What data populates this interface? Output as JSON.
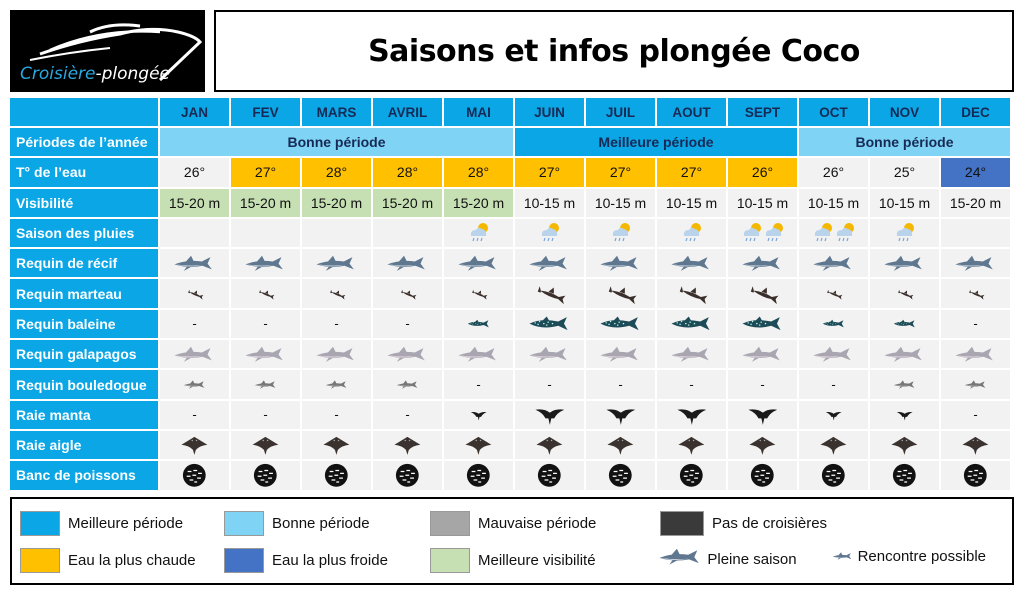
{
  "logo": {
    "text_part1": "Croisière",
    "text_part2": "-plongée"
  },
  "title": "Saisons et infos plongée Coco",
  "colors": {
    "best_period": "#0aa6e6",
    "good_period": "#7fd4f5",
    "bad_period": "#a6a6a6",
    "no_cruise": "#3a3a3a",
    "warmest_water": "#ffc000",
    "coldest_water": "#4472c4",
    "best_visibility": "#c6e0b4"
  },
  "months": [
    "JAN",
    "FEV",
    "MARS",
    "AVRIL",
    "MAI",
    "JUIN",
    "JUIL",
    "AOUT",
    "SEPT",
    "OCT",
    "NOV",
    "DEC"
  ],
  "periods": {
    "label": "Périodes de l’année",
    "segments": [
      {
        "text": "Bonne période",
        "span": 5,
        "type": "good"
      },
      {
        "text": "Meilleure période",
        "span": 4,
        "type": "best"
      },
      {
        "text": "Bonne période",
        "span": 3,
        "type": "good"
      }
    ]
  },
  "temperature": {
    "label": "T° de l’eau",
    "values": [
      "26°",
      "27°",
      "28°",
      "28°",
      "28°",
      "27°",
      "27°",
      "27°",
      "26°",
      "26°",
      "25°",
      "24°"
    ],
    "highlight": [
      "none",
      "warm",
      "warm",
      "warm",
      "warm",
      "warm",
      "warm",
      "warm",
      "warm",
      "none",
      "none",
      "cold"
    ]
  },
  "visibility": {
    "label": "Visibilité",
    "values": [
      "15-20 m",
      "15-20 m",
      "15-20 m",
      "15-20 m",
      "15-20 m",
      "10-15 m",
      "10-15 m",
      "10-15 m",
      "10-15 m",
      "10-15 m",
      "10-15 m",
      "15-20 m"
    ],
    "highlight": [
      true,
      true,
      true,
      true,
      true,
      false,
      false,
      false,
      false,
      false,
      false,
      false
    ]
  },
  "rain": {
    "label": "Saison des pluies",
    "icon": "rain-cloud-icon",
    "counts": [
      0,
      0,
      0,
      0,
      1,
      1,
      1,
      1,
      2,
      2,
      1,
      0
    ]
  },
  "species": [
    {
      "label": "Requin de récif",
      "icon": "reef-shark",
      "levels": [
        "full",
        "full",
        "full",
        "full",
        "full",
        "full",
        "full",
        "full",
        "full",
        "full",
        "full",
        "full"
      ]
    },
    {
      "label": "Requin marteau",
      "icon": "hammerhead-shark",
      "levels": [
        "possible",
        "possible",
        "possible",
        "possible",
        "possible",
        "full",
        "full",
        "full",
        "full",
        "possible",
        "possible",
        "possible"
      ]
    },
    {
      "label": "Requin baleine",
      "icon": "whale-shark",
      "levels": [
        "none",
        "none",
        "none",
        "none",
        "possible",
        "full",
        "full",
        "full",
        "full",
        "possible",
        "possible",
        "none"
      ]
    },
    {
      "label": "Requin galapagos",
      "icon": "galapagos-shark",
      "levels": [
        "full",
        "full",
        "full",
        "full",
        "full",
        "full",
        "full",
        "full",
        "full",
        "full",
        "full",
        "full"
      ]
    },
    {
      "label": "Requin bouledogue",
      "icon": "bull-shark",
      "levels": [
        "possible",
        "possible",
        "possible",
        "possible",
        "none",
        "none",
        "none",
        "none",
        "none",
        "none",
        "possible",
        "possible"
      ]
    },
    {
      "label": "Raie manta",
      "icon": "manta-ray",
      "levels": [
        "none",
        "none",
        "none",
        "none",
        "possible",
        "full",
        "full",
        "full",
        "full",
        "possible",
        "possible",
        "none"
      ]
    },
    {
      "label": "Raie aigle",
      "icon": "eagle-ray",
      "levels": [
        "full",
        "full",
        "full",
        "full",
        "full",
        "full",
        "full",
        "full",
        "full",
        "full",
        "full",
        "full"
      ]
    },
    {
      "label": "Banc de poissons",
      "icon": "fish-school",
      "levels": [
        "full",
        "full",
        "full",
        "full",
        "full",
        "full",
        "full",
        "full",
        "full",
        "full",
        "full",
        "full"
      ]
    }
  ],
  "none_marker": "-",
  "legend": {
    "best_period": "Meilleure période",
    "good_period": "Bonne période",
    "bad_period": "Mauvaise période",
    "no_cruise": "Pas de croisières",
    "warmest_water": "Eau la plus chaude",
    "coldest_water": "Eau la plus froide",
    "best_visibility": "Meilleure visibilité",
    "full_season": "Pleine saison",
    "possible": "Rencontre possible"
  }
}
